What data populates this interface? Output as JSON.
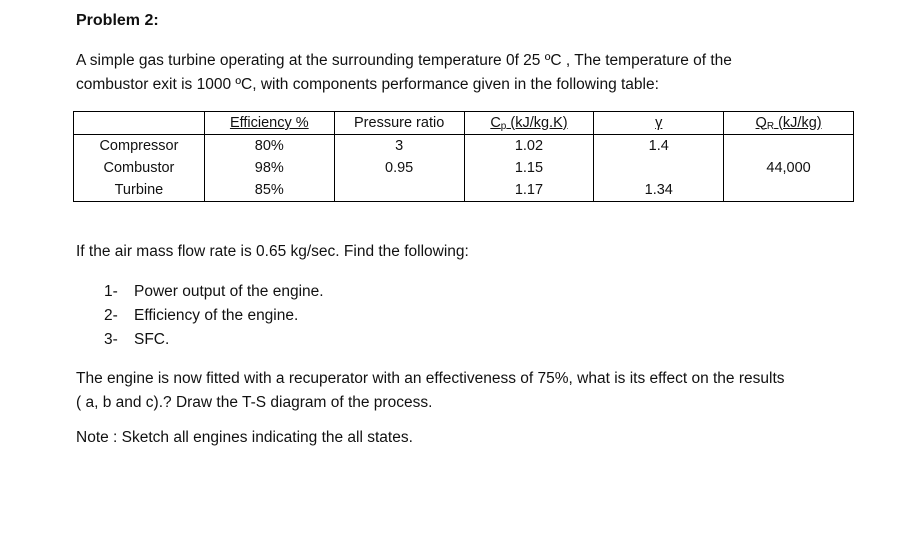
{
  "problem_title": "Problem 2:",
  "intro_line1": "A simple gas turbine operating at the surrounding temperature 0f 25 ºC , The temperature of the",
  "intro_line2": "combustor exit is 1000 ºC, with components performance given in the following table:",
  "table": {
    "headers": {
      "efficiency": "Efficiency %",
      "pressure_ratio": "Pressure ratio",
      "cp_symbol": "C",
      "cp_sub": "p",
      "cp_unit": " (kJ/kg.K)",
      "gamma": "γ",
      "qr_symbol": "Q",
      "qr_sub": "R",
      "qr_unit": " (kJ/kg)"
    },
    "rows": [
      {
        "component": "Compressor",
        "efficiency": "80%",
        "pressure_ratio": "3",
        "cp": "1.02",
        "gamma": "1.4",
        "qr": ""
      },
      {
        "component": "Combustor",
        "efficiency": "98%",
        "pressure_ratio": "0.95",
        "cp": "1.15",
        "gamma": "",
        "qr": "44,000"
      },
      {
        "component": "Turbine",
        "efficiency": "85%",
        "pressure_ratio": "",
        "cp": "1.17",
        "gamma": "1.34",
        "qr": ""
      }
    ]
  },
  "question_intro": "If the air mass flow rate is 0.65 kg/sec. Find the following:",
  "tasks": [
    {
      "num": "1-",
      "text": "Power output of the engine."
    },
    {
      "num": "2-",
      "text": "Efficiency of the engine."
    },
    {
      "num": "3-",
      "text": "SFC."
    }
  ],
  "recuperator_line1": "The engine is now fitted with a recuperator with an effectiveness of 75%, what is its effect on the results",
  "recuperator_line2": "( a, b and c).? Draw the T-S diagram of the process.",
  "note": "Note : Sketch all engines indicating the all states."
}
